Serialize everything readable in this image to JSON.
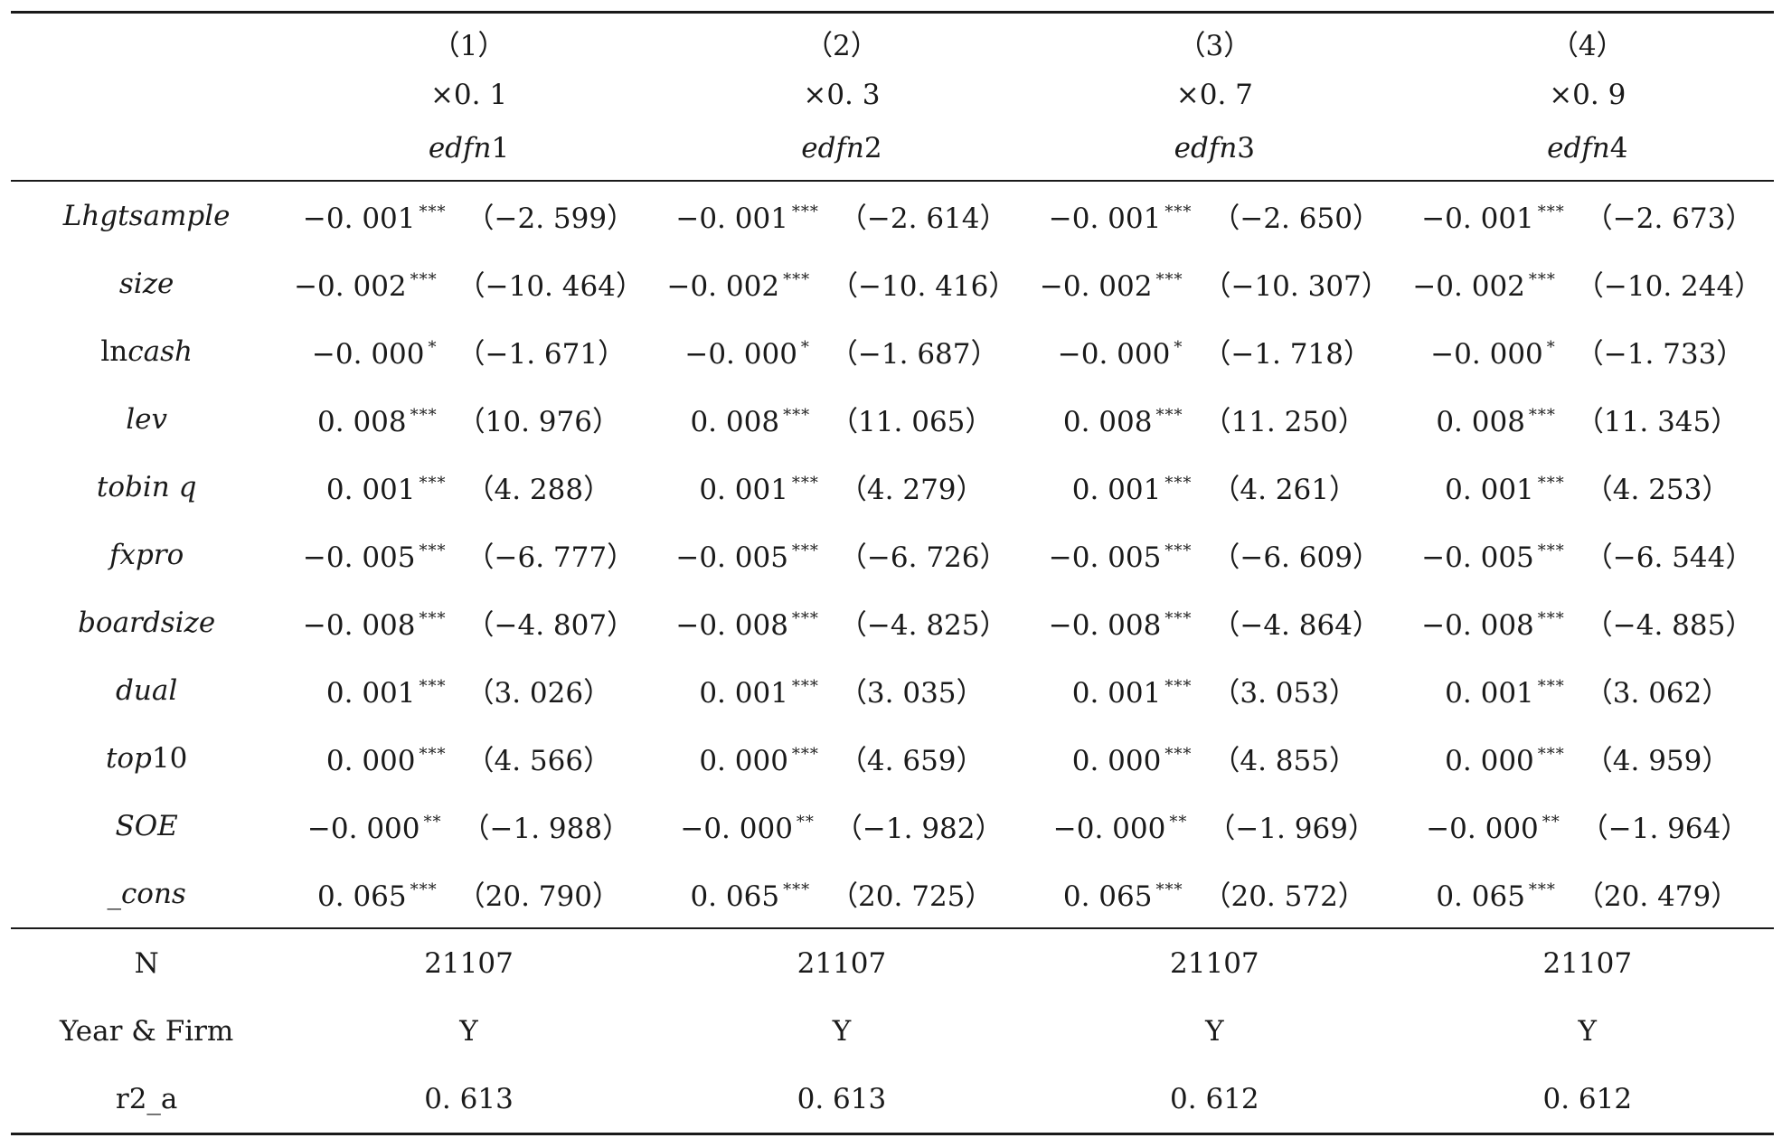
{
  "columns": [
    {
      "number": "（1）",
      "quantile": "×0. 1",
      "dep_prefix": "edfn",
      "dep_suffix": "1"
    },
    {
      "number": "（2）",
      "quantile": "×0. 3",
      "dep_prefix": "edfn",
      "dep_suffix": "2"
    },
    {
      "number": "（3）",
      "quantile": "×0. 7",
      "dep_prefix": "edfn",
      "dep_suffix": "3"
    },
    {
      "number": "（4）",
      "quantile": "×0. 9",
      "dep_prefix": "edfn",
      "dep_suffix": "4"
    }
  ],
  "rows": [
    {
      "label_ital": "Lhgtsample",
      "label_plain": "",
      "cells": [
        {
          "coef": "−0. 001",
          "stars": "***",
          "t": "（−2. 599）"
        },
        {
          "coef": "−0. 001",
          "stars": "***",
          "t": "（−2. 614）"
        },
        {
          "coef": "−0. 001",
          "stars": "***",
          "t": "（−2. 650）"
        },
        {
          "coef": "−0. 001",
          "stars": "***",
          "t": "（−2. 673）"
        }
      ]
    },
    {
      "label_ital": "size",
      "label_plain": "",
      "cells": [
        {
          "coef": "−0. 002",
          "stars": "***",
          "t": "（−10. 464）"
        },
        {
          "coef": "−0. 002",
          "stars": "***",
          "t": "（−10. 416）"
        },
        {
          "coef": "−0. 002",
          "stars": "***",
          "t": "（−10. 307）"
        },
        {
          "coef": "−0. 002",
          "stars": "***",
          "t": "（−10. 244）"
        }
      ]
    },
    {
      "label_prefix": "ln",
      "label_ital": "cash",
      "label_plain": "",
      "cells": [
        {
          "coef": "−0. 000",
          "stars": "*",
          "t": "（−1. 671）"
        },
        {
          "coef": "−0. 000",
          "stars": "*",
          "t": "（−1. 687）"
        },
        {
          "coef": "−0. 000",
          "stars": "*",
          "t": "（−1. 718）"
        },
        {
          "coef": "−0. 000",
          "stars": "*",
          "t": "（−1. 733）"
        }
      ]
    },
    {
      "label_ital": "lev",
      "label_plain": "",
      "cells": [
        {
          "coef": "0. 008",
          "stars": "***",
          "t": "（10. 976）"
        },
        {
          "coef": "0. 008",
          "stars": "***",
          "t": "（11. 065）"
        },
        {
          "coef": "0. 008",
          "stars": "***",
          "t": "（11. 250）"
        },
        {
          "coef": "0. 008",
          "stars": "***",
          "t": "（11. 345）"
        }
      ]
    },
    {
      "label_ital": "tobin q",
      "label_plain": "",
      "cells": [
        {
          "coef": "0. 001",
          "stars": "***",
          "t": "（4. 288）"
        },
        {
          "coef": "0. 001",
          "stars": "***",
          "t": "（4. 279）"
        },
        {
          "coef": "0. 001",
          "stars": "***",
          "t": "（4. 261）"
        },
        {
          "coef": "0. 001",
          "stars": "***",
          "t": "（4. 253）"
        }
      ]
    },
    {
      "label_ital": "fxpro",
      "label_plain": "",
      "cells": [
        {
          "coef": "−0. 005",
          "stars": "***",
          "t": "（−6. 777）"
        },
        {
          "coef": "−0. 005",
          "stars": "***",
          "t": "（−6. 726）"
        },
        {
          "coef": "−0. 005",
          "stars": "***",
          "t": "（−6. 609）"
        },
        {
          "coef": "−0. 005",
          "stars": "***",
          "t": "（−6. 544）"
        }
      ]
    },
    {
      "label_ital": "boardsize",
      "label_plain": "",
      "cells": [
        {
          "coef": "−0. 008",
          "stars": "***",
          "t": "（−4. 807）"
        },
        {
          "coef": "−0. 008",
          "stars": "***",
          "t": "（−4. 825）"
        },
        {
          "coef": "−0. 008",
          "stars": "***",
          "t": "（−4. 864）"
        },
        {
          "coef": "−0. 008",
          "stars": "***",
          "t": "（−4. 885）"
        }
      ]
    },
    {
      "label_ital": "dual",
      "label_plain": "",
      "cells": [
        {
          "coef": "0. 001",
          "stars": "***",
          "t": "（3. 026）"
        },
        {
          "coef": "0. 001",
          "stars": "***",
          "t": "（3. 035）"
        },
        {
          "coef": "0. 001",
          "stars": "***",
          "t": "（3. 053）"
        },
        {
          "coef": "0. 001",
          "stars": "***",
          "t": "（3. 062）"
        }
      ]
    },
    {
      "label_ital": "top",
      "label_plain": "10",
      "cells": [
        {
          "coef": "0. 000",
          "stars": "***",
          "t": "（4. 566）"
        },
        {
          "coef": "0. 000",
          "stars": "***",
          "t": "（4. 659）"
        },
        {
          "coef": "0. 000",
          "stars": "***",
          "t": "（4. 855）"
        },
        {
          "coef": "0. 000",
          "stars": "***",
          "t": "（4. 959）"
        }
      ]
    },
    {
      "label_ital": "SOE",
      "label_plain": "",
      "cells": [
        {
          "coef": "−0. 000",
          "stars": "**",
          "t": "（−1. 988）"
        },
        {
          "coef": "−0. 000",
          "stars": "**",
          "t": "（−1. 982）"
        },
        {
          "coef": "−0. 000",
          "stars": "**",
          "t": "（−1. 969）"
        },
        {
          "coef": "−0. 000",
          "stars": "**",
          "t": "（−1. 964）"
        }
      ]
    },
    {
      "label_ital": "_cons",
      "label_plain": "",
      "cells": [
        {
          "coef": "0. 065",
          "stars": "***",
          "t": "（20. 790）"
        },
        {
          "coef": "0. 065",
          "stars": "***",
          "t": "（20. 725）"
        },
        {
          "coef": "0. 065",
          "stars": "***",
          "t": "（20. 572）"
        },
        {
          "coef": "0. 065",
          "stars": "***",
          "t": "（20. 479）"
        }
      ]
    }
  ],
  "stats": [
    {
      "label": "N",
      "values": [
        "21107",
        "21107",
        "21107",
        "21107"
      ]
    },
    {
      "label": "Year & Firm",
      "values": [
        "Y",
        "Y",
        "Y",
        "Y"
      ]
    },
    {
      "label": "r2_a",
      "values": [
        "0. 613",
        "0. 613",
        "0. 612",
        "0. 612"
      ]
    }
  ]
}
